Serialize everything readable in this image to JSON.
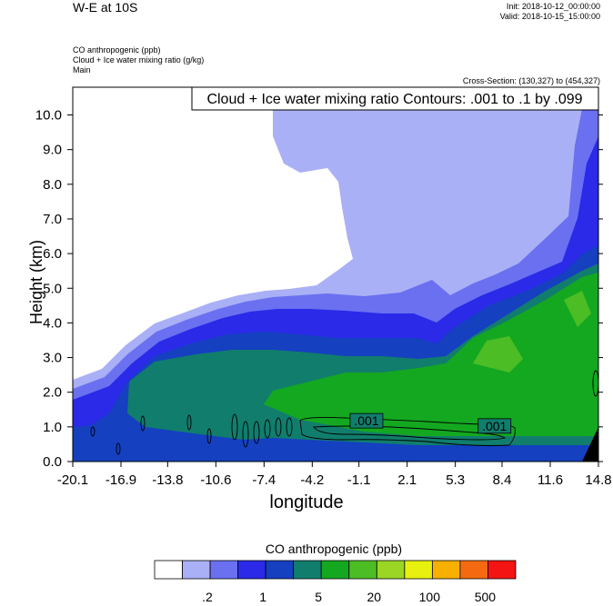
{
  "header": {
    "title": "W-E at 10S",
    "init": "Init: 2018-10-12_00:00:00",
    "valid": "Valid: 2018-10-15_15:00:00"
  },
  "description": {
    "line1": "CO anthropogenic   (ppb)",
    "line2": "Cloud + Ice water mixing ratio   (g/kg)",
    "line3": "Main"
  },
  "cross_section": "Cross-Section: (130,327) to (454,327)",
  "contour_info": "Cloud + Ice water mixing ratio Contours: .001 to .1 by .099",
  "colorbar": {
    "title": "CO anthropogenic  (ppb)",
    "colors": [
      "#ffffff",
      "#aab0f5",
      "#6a70f0",
      "#2a2ae8",
      "#1540c0",
      "#117d6d",
      "#14a820",
      "#4cbd25",
      "#9bd625",
      "#e8f00f",
      "#f7b000",
      "#f56a10",
      "#f41414"
    ],
    "tick_labels": [
      ".2",
      "1",
      "5",
      "20",
      "100",
      "500"
    ]
  },
  "chart_data": {
    "type": "heatmap",
    "title": "",
    "xlabel": "longitude",
    "ylabel": "Height (km)",
    "xlim": [
      -20.1,
      14.8
    ],
    "ylim": [
      0.0,
      10.8
    ],
    "x_ticks": [
      "-20.1",
      "-16.9",
      "-13.8",
      "-10.6",
      "-7.4",
      "-4.2",
      "-1.1",
      "2.1",
      "5.3",
      "8.4",
      "11.6",
      "14.8"
    ],
    "y_ticks": [
      "0.0",
      "1.0",
      "2.0",
      "3.0",
      "4.0",
      "5.0",
      "6.0",
      "7.0",
      "8.0",
      "9.0",
      "10.0"
    ],
    "contour_labels": [
      {
        "x": -0.6,
        "y": 1.15,
        "text": ".001"
      },
      {
        "x": 7.9,
        "y": 1.0,
        "text": ".001"
      }
    ],
    "field_description": "CO anthropogenic concentration cross-section: low values aloft (white/light blue), higher near surface (green)",
    "bands": [
      {
        "level": 0,
        "boundary": [
          [
            -20.1,
            2.3
          ],
          [
            -17.5,
            2.5
          ],
          [
            -15,
            3.0
          ],
          [
            -12.5,
            3.6
          ],
          [
            -10.5,
            4.2
          ],
          [
            -8.5,
            4.6
          ],
          [
            -6.5,
            4.8
          ],
          [
            -5,
            5.0
          ],
          [
            -3.5,
            5.0
          ],
          [
            -2,
            5.1
          ],
          [
            0,
            4.6
          ],
          [
            2,
            3.6
          ],
          [
            3,
            3.2
          ],
          [
            4.5,
            4.2
          ],
          [
            6,
            5.2
          ],
          [
            8,
            5.4
          ],
          [
            10,
            5.7
          ],
          [
            12,
            6.0
          ],
          [
            13,
            7.5
          ],
          [
            14.8,
            10.8
          ]
        ]
      }
    ]
  }
}
